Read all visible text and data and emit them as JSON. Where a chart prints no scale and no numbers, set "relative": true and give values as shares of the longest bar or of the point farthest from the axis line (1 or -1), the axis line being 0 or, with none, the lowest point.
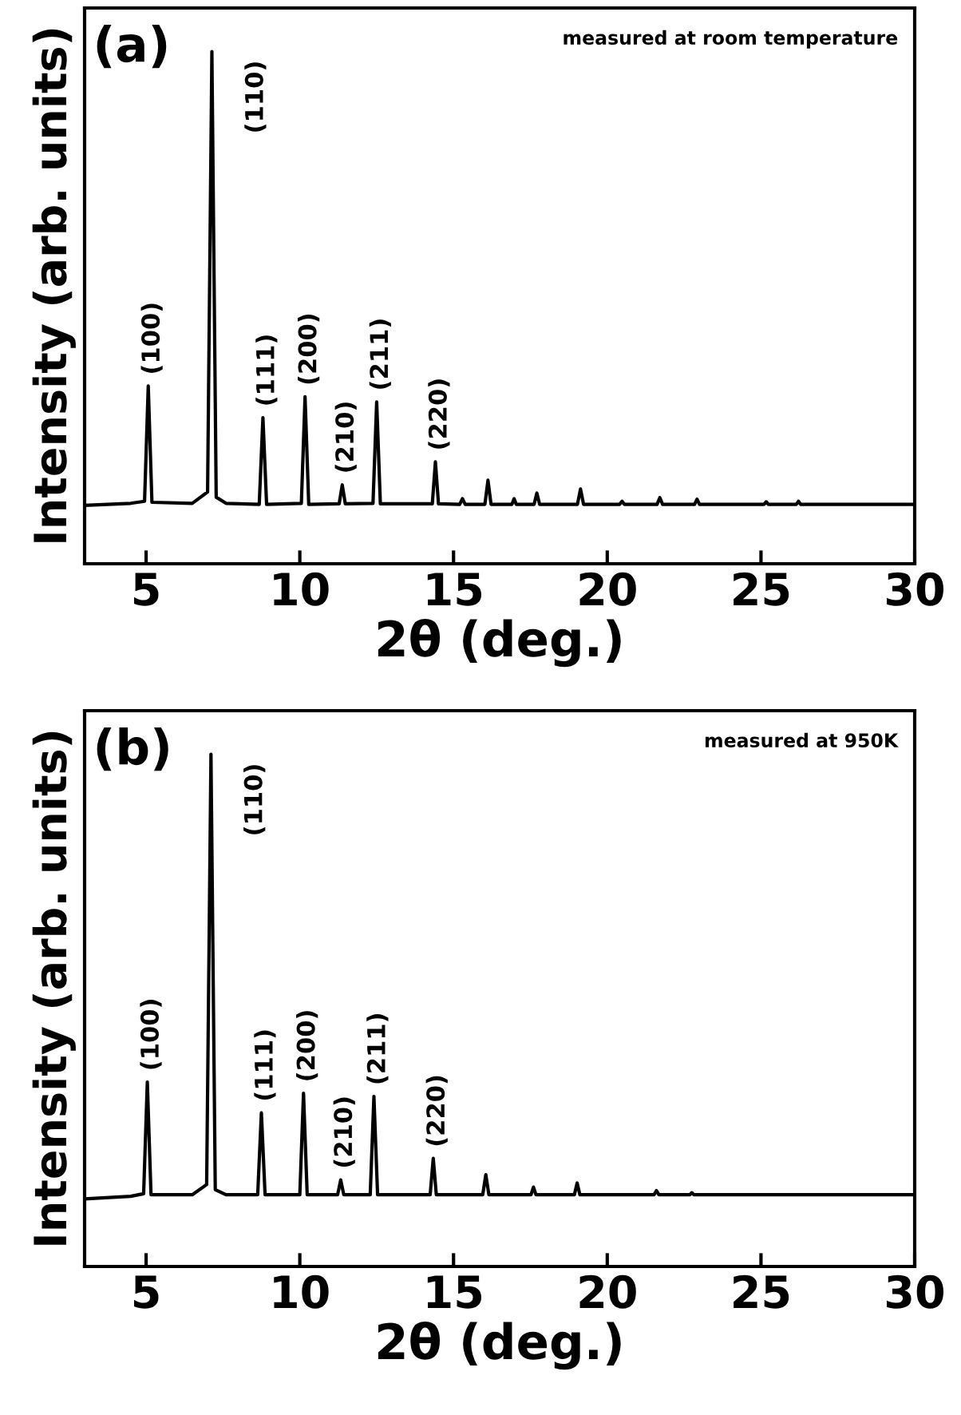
{
  "chart_data": [
    {
      "type": "line",
      "relative": true,
      "title": "(a)",
      "subtitle": "measured at room temperature",
      "xlabel": "2θ (deg.)",
      "ylabel": "Intensity (arb. units)",
      "xlim": [
        3,
        30
      ],
      "xticks": [
        5,
        10,
        15,
        20,
        25,
        30
      ],
      "tick_labels": "x",
      "marker": "none",
      "line_style": "solid",
      "grid": false,
      "legend": false,
      "series": [
        {
          "color": "#000000",
          "x": [
            3.0,
            4.5,
            4.95,
            5.07,
            5.19,
            6.5,
            7.0,
            7.14,
            7.28,
            7.6,
            8.68,
            8.8,
            8.92,
            10.05,
            10.17,
            10.29,
            11.28,
            11.38,
            11.48,
            12.38,
            12.5,
            12.62,
            14.31,
            14.41,
            14.51,
            15.2,
            15.29,
            15.38,
            16.02,
            16.12,
            16.22,
            16.9,
            16.97,
            17.04,
            17.62,
            17.71,
            17.8,
            19.03,
            19.13,
            19.23,
            20.4,
            20.48,
            20.56,
            21.62,
            21.71,
            21.8,
            22.84,
            22.92,
            23.0,
            25.1,
            25.17,
            25.24,
            26.15,
            26.22,
            26.29,
            30.0
          ],
          "values": [
            0.114,
            0.118,
            0.122,
            0.347,
            0.12,
            0.118,
            0.14,
            1,
            0.13,
            0.118,
            0.116,
            0.285,
            0.116,
            0.118,
            0.326,
            0.116,
            0.117,
            0.154,
            0.117,
            0.118,
            0.316,
            0.117,
            0.117,
            0.199,
            0.117,
            0.116,
            0.127,
            0.116,
            0.116,
            0.163,
            0.116,
            0.116,
            0.127,
            0.116,
            0.116,
            0.138,
            0.116,
            0.116,
            0.146,
            0.116,
            0.116,
            0.122,
            0.116,
            0.116,
            0.129,
            0.116,
            0.116,
            0.126,
            0.116,
            0.116,
            0.121,
            0.116,
            0.116,
            0.122,
            0.116,
            0.116
          ]
        }
      ],
      "annotations": [
        {
          "text": "(100)",
          "x": 5.07,
          "y": 0.347
        },
        {
          "text": "(110)",
          "x": 7.14,
          "y": 1
        },
        {
          "text": "(111)",
          "x": 8.8,
          "y": 0.285
        },
        {
          "text": "(200)",
          "x": 10.17,
          "y": 0.326
        },
        {
          "text": "(210)",
          "x": 11.38,
          "y": 0.154
        },
        {
          "text": "(211)",
          "x": 12.5,
          "y": 0.316
        },
        {
          "text": "(220)",
          "x": 14.41,
          "y": 0.199
        }
      ]
    },
    {
      "type": "line",
      "relative": true,
      "title": "(b)",
      "subtitle": "measured at 950K",
      "xlabel": "2θ (deg.)",
      "ylabel": "Intensity (arb. units)",
      "xlim": [
        3,
        30
      ],
      "xticks": [
        5,
        10,
        15,
        20,
        25,
        30
      ],
      "tick_labels": "x",
      "marker": "none",
      "line_style": "solid",
      "grid": false,
      "legend": false,
      "series": [
        {
          "color": "#000000",
          "x": [
            3.0,
            4.5,
            4.92,
            5.04,
            5.16,
            6.5,
            6.97,
            7.11,
            7.25,
            7.6,
            8.63,
            8.75,
            8.87,
            10.0,
            10.12,
            10.24,
            11.23,
            11.33,
            11.43,
            12.29,
            12.41,
            12.53,
            14.24,
            14.34,
            14.44,
            15.95,
            16.05,
            16.15,
            17.52,
            17.6,
            17.68,
            18.93,
            19.02,
            19.11,
            21.52,
            21.6,
            21.68,
            22.68,
            22.75,
            22.82,
            30.0
          ],
          "values": [
            0.132,
            0.137,
            0.142,
            0.36,
            0.14,
            0.14,
            0.16,
            1,
            0.15,
            0.14,
            0.14,
            0.3,
            0.14,
            0.14,
            0.338,
            0.14,
            0.14,
            0.169,
            0.14,
            0.14,
            0.332,
            0.14,
            0.14,
            0.211,
            0.14,
            0.14,
            0.179,
            0.14,
            0.14,
            0.155,
            0.14,
            0.14,
            0.163,
            0.14,
            0.14,
            0.148,
            0.14,
            0.14,
            0.144,
            0.14,
            0.14
          ]
        }
      ],
      "annotations": [
        {
          "text": "(100)",
          "x": 5.04,
          "y": 0.36
        },
        {
          "text": "(110)",
          "x": 7.11,
          "y": 1
        },
        {
          "text": "(111)",
          "x": 8.75,
          "y": 0.3
        },
        {
          "text": "(200)",
          "x": 10.12,
          "y": 0.338
        },
        {
          "text": "(210)",
          "x": 11.33,
          "y": 0.169
        },
        {
          "text": "(211)",
          "x": 12.41,
          "y": 0.332
        },
        {
          "text": "(220)",
          "x": 14.34,
          "y": 0.211
        }
      ]
    }
  ]
}
